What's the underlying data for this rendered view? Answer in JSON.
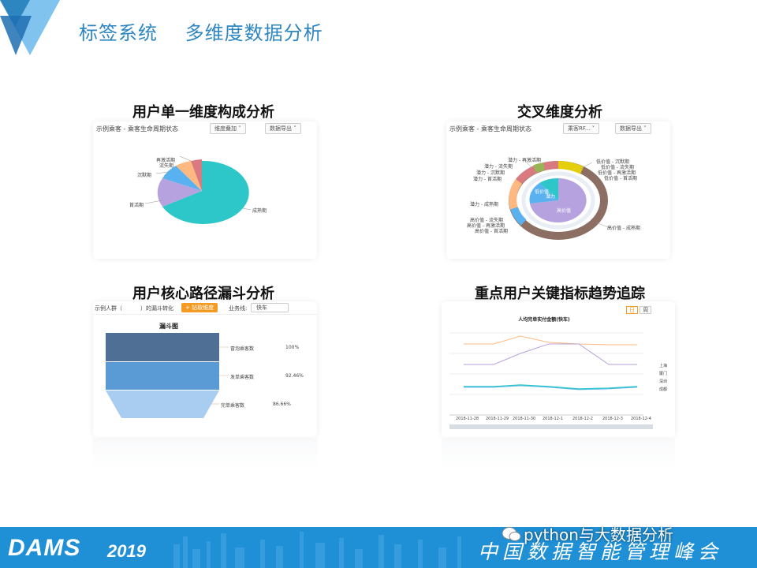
{
  "header": {
    "title_left": "标签系统",
    "title_right": "多维度数据分析"
  },
  "panels": {
    "single": {
      "heading": "用户单一维度构成分析",
      "subtitle": "示例乘客 - 乘客生命周期状态",
      "btn1": "维度叠加 ˅",
      "btn2": "数据导出 ˅",
      "labels": [
        "再激活期",
        "流失期",
        "沉默期",
        "首活期",
        "成熟期"
      ]
    },
    "cross": {
      "heading": "交叉维度分析",
      "subtitle": "示例乘客 - 乘客生命周期状态",
      "btn1": "乘客RF... ˅",
      "btn2": "数据导出 ˅",
      "inner_labels": [
        "低价值",
        "潜力",
        "高价值"
      ],
      "outer_labels": [
        "潜力 - 再激活期",
        "潜力 - 流失期",
        "潜力 - 沉默期",
        "潜力 - 首活期",
        "潜力 - 成熟期",
        "高价值 - 流失期",
        "高价值 - 再激活期",
        "高价值 - 首活期",
        "低价值 - 沉默期",
        "低价值 - 流失期",
        "低价值 - 再激活期",
        "低价值 - 首活期",
        "高价值 - 成熟期"
      ]
    },
    "funnel": {
      "heading": "用户核心路径漏斗分析",
      "toolbar_a": "示例人群（",
      "toolbar_b": "）的漏斗转化",
      "toolbar_btn": "+ 钻取维度",
      "toolbar_c": "业务线:",
      "toolbar_select": "快车",
      "chart_title": "漏斗图",
      "stages": [
        {
          "name": "冒泡乘客数",
          "pct": "100%"
        },
        {
          "name": "发单乘客数",
          "pct": "92.46%"
        },
        {
          "name": "完单乘客数",
          "pct": "86.66%"
        }
      ]
    },
    "trend": {
      "heading": "重点用户关键指标趋势追踪",
      "chart_title": "人均完单实付金额(快车)",
      "toggle": [
        "日",
        "周"
      ],
      "x_labels": [
        "2018-11-28",
        "2018-11-29",
        "2018-11-30",
        "2018-12-1",
        "2018-12-2",
        "2018-12-3",
        "2018-12-4"
      ],
      "legend": [
        "上海",
        "厦门",
        "深圳",
        "成都"
      ]
    }
  },
  "footer": {
    "brand": "DAMS",
    "year": "2019",
    "summit": "中国数据智能管理峰会",
    "watermark": "python与大数据分析"
  },
  "colors": {
    "accent": "#2e86c1",
    "footer_bg": "#1f8fd6",
    "pie_teal": "#2ec7c9",
    "pie_purple": "#b6a2de",
    "pie_blue": "#5ab1ef",
    "pie_orange": "#ffb980",
    "pie_red": "#d87a80",
    "ring_brown": "#8d6e63"
  }
}
